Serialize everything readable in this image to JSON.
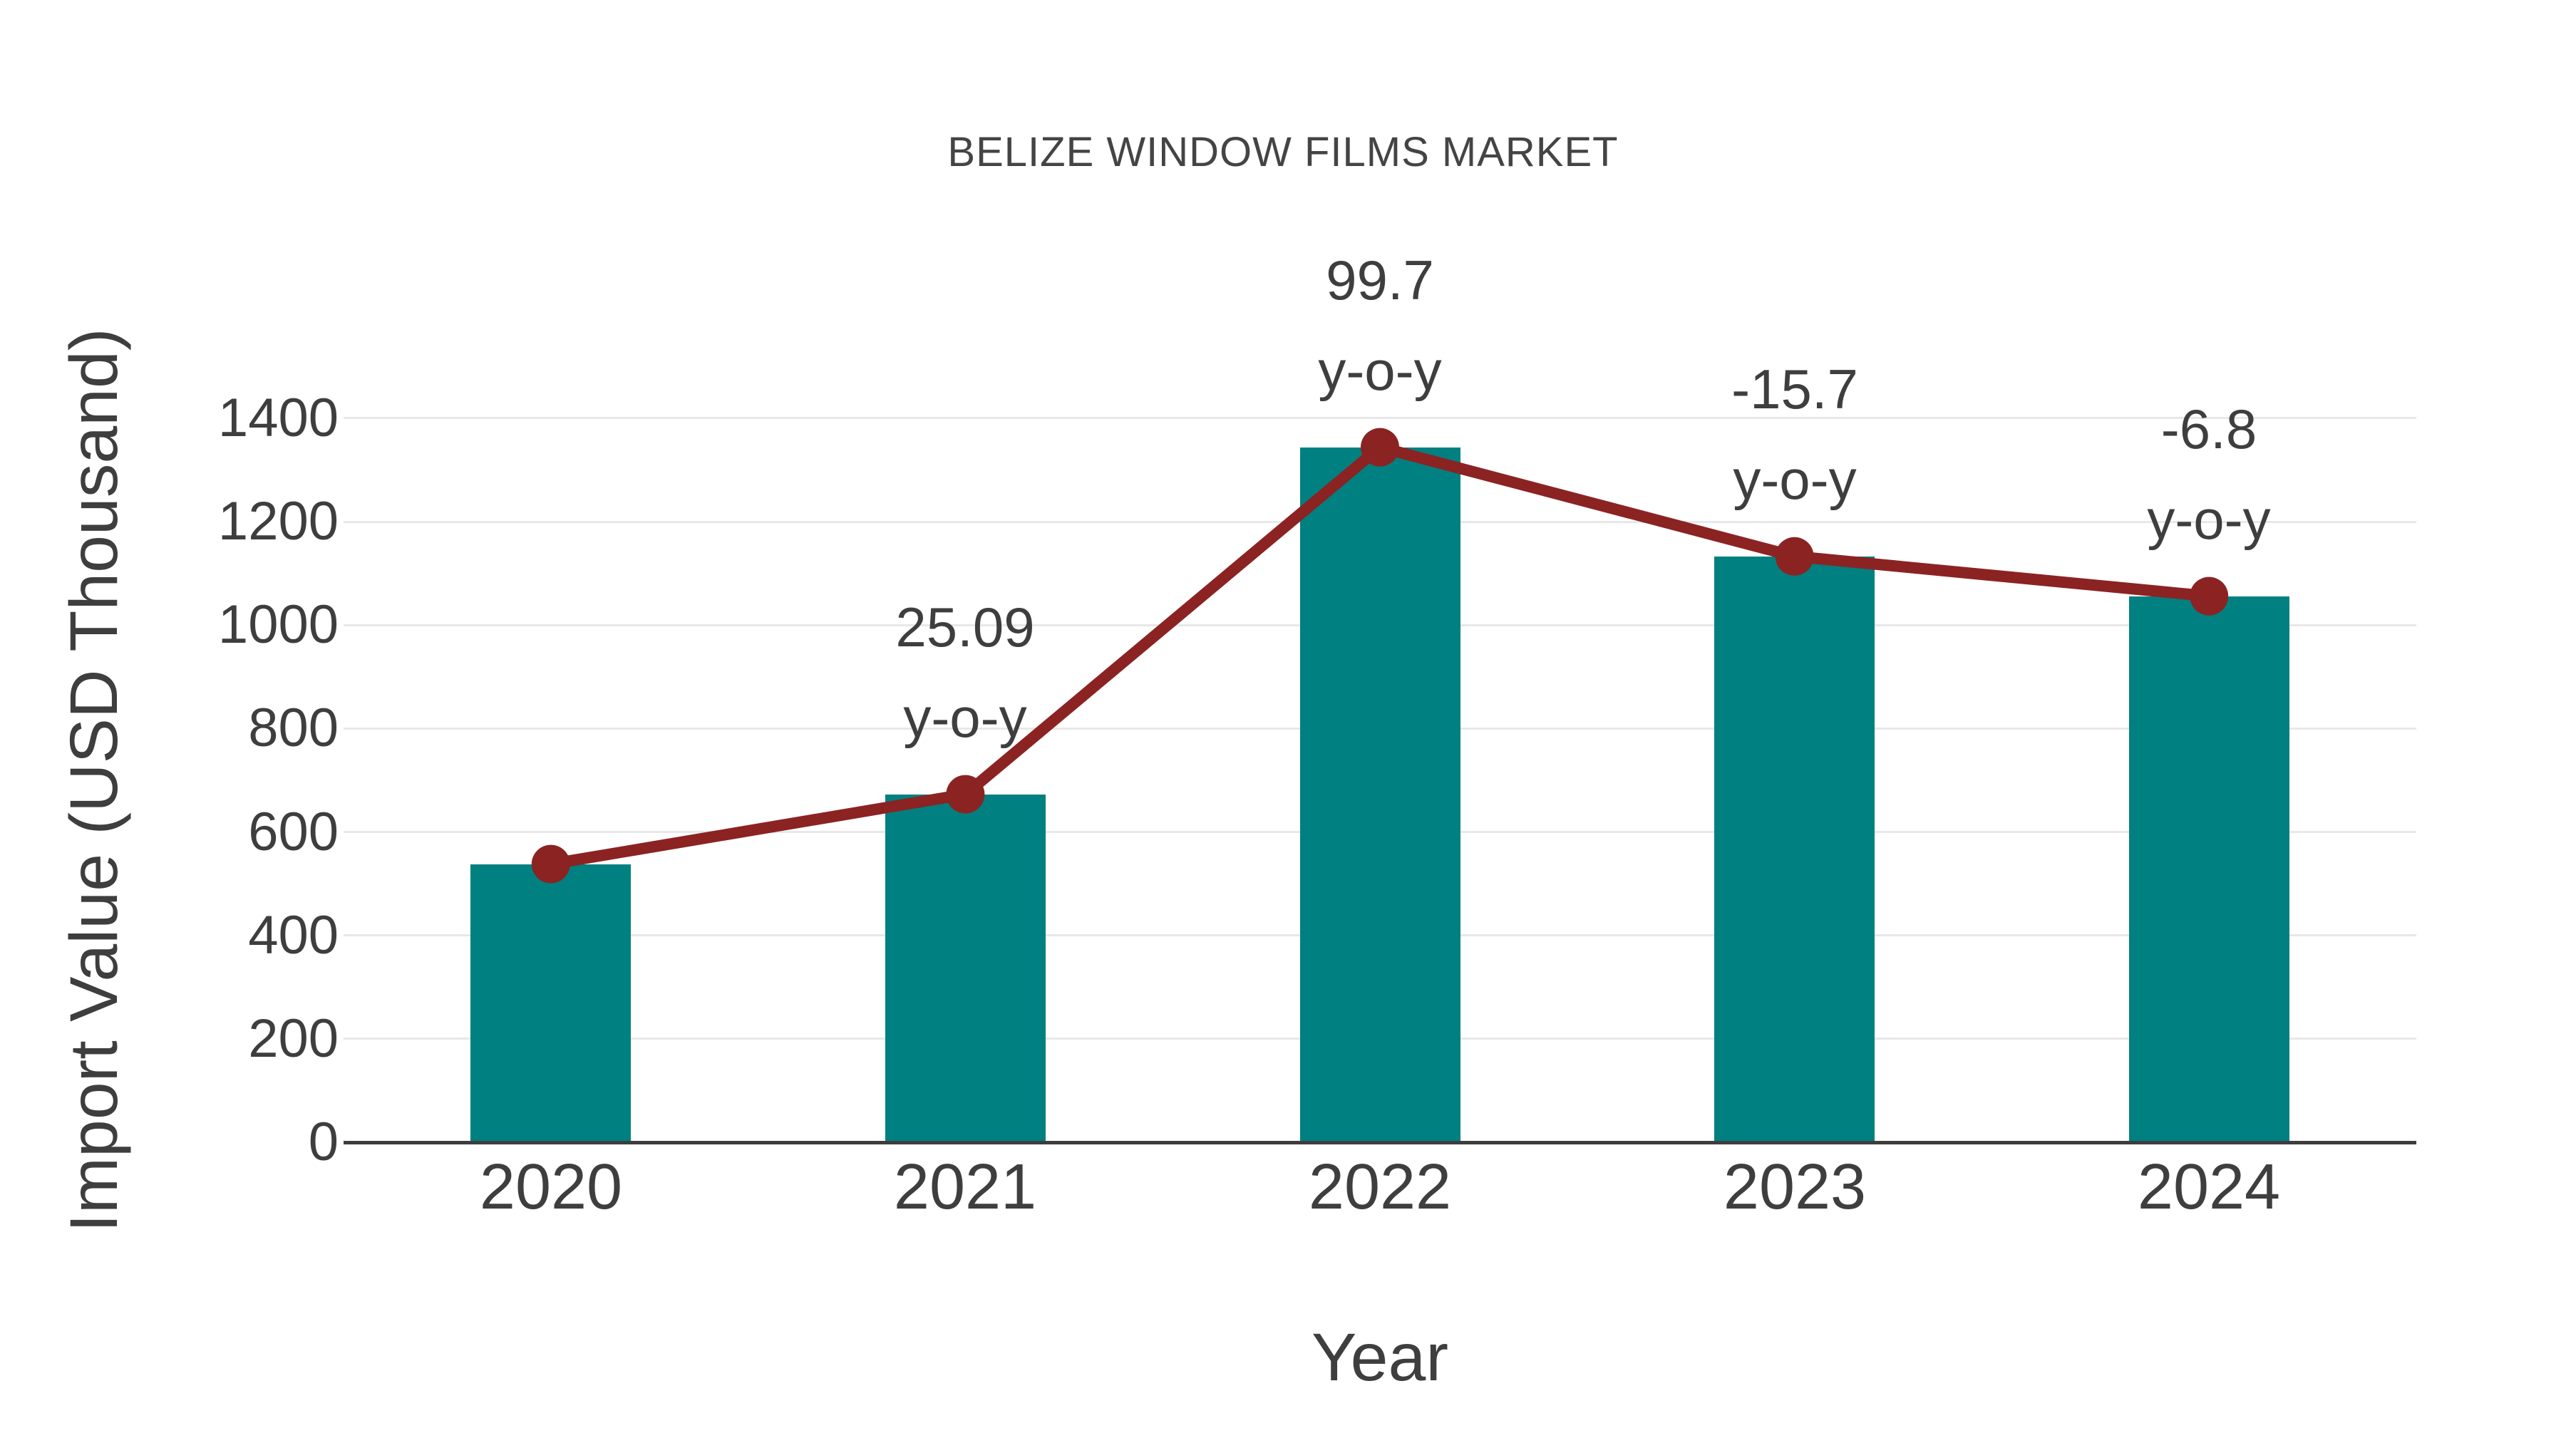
{
  "chart_data": {
    "type": "bar",
    "title": "BELIZE WINDOW FILMS MARKET",
    "xlabel": "Year",
    "ylabel": "Import Value (USD Thousand)",
    "categories": [
      "2020",
      "2021",
      "2022",
      "2023",
      "2024"
    ],
    "series": [
      {
        "name": "import-value-bars",
        "type": "bar",
        "values": [
          538,
          673,
          1344,
          1133,
          1056
        ]
      },
      {
        "name": "import-value-trend",
        "type": "line",
        "values": [
          538,
          673,
          1344,
          1133,
          1056
        ]
      }
    ],
    "annotations": [
      {
        "category": "2021",
        "line1": "25.09",
        "line2": "y-o-y"
      },
      {
        "category": "2022",
        "line1": "99.7",
        "line2": "y-o-y"
      },
      {
        "category": "2023",
        "line1": "-15.7",
        "line2": "y-o-y"
      },
      {
        "category": "2024",
        "line1": "-6.8",
        "line2": "y-o-y"
      }
    ],
    "yticks": [
      0,
      200,
      400,
      600,
      800,
      1000,
      1200,
      1400
    ],
    "ylim": [
      0,
      1400
    ],
    "grid": true,
    "legend_position": "none",
    "colors": {
      "bar": "#008080",
      "line": "#8B2322",
      "marker": "#8B2322",
      "text": "#3e3e3e",
      "grid": "#e8e8e8",
      "axis": "#3d3d3d",
      "background": "#ffffff"
    }
  }
}
